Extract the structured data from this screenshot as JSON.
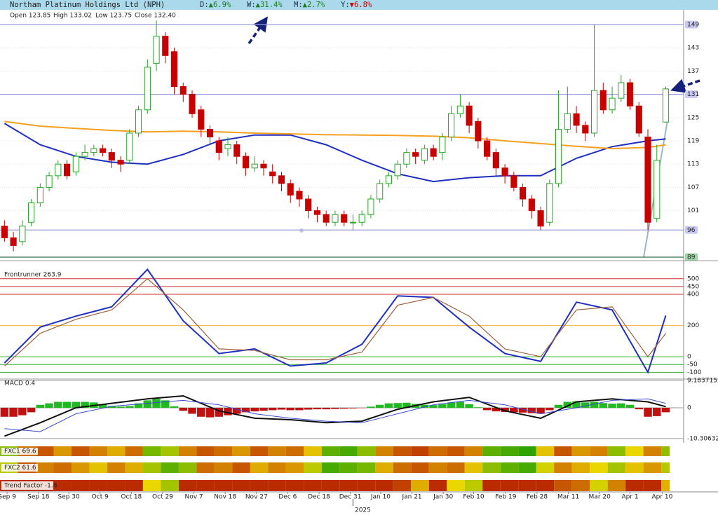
{
  "chart_data": [
    {
      "type": "candlestick",
      "title": "Northam Platinum Holdings Ltd (NPH)",
      "changes": [
        {
          "label": "D:",
          "text": "▲6.9%",
          "color": "#1e7b1e"
        },
        {
          "label": "W:",
          "text": "▲31.4%",
          "color": "#1e7b1e"
        },
        {
          "label": "M:",
          "text": "▲2.7%",
          "color": "#1e7b1e"
        },
        {
          "label": "Y:",
          "text": "▼6.8%",
          "color": "#cc0000"
        }
      ],
      "ohlc_text": [
        "Open 123.85",
        "High 133.02",
        "Low 123.75",
        "Close 132.40"
      ],
      "open": [
        97,
        94,
        93,
        98,
        103,
        107,
        110,
        113,
        111,
        115,
        116,
        117,
        116,
        114,
        114,
        121,
        127,
        139,
        146,
        142,
        133,
        131,
        127,
        122,
        119,
        117,
        118,
        115,
        112,
        113,
        111,
        110,
        108,
        106,
        104,
        101,
        100,
        98,
        100,
        98,
        98,
        100,
        104,
        108,
        110,
        113,
        116,
        114,
        117,
        116,
        120,
        126,
        128,
        124,
        119,
        116,
        112,
        110,
        107,
        104,
        101,
        98,
        108,
        122,
        126,
        123,
        121,
        132,
        127,
        130,
        134,
        128,
        120,
        99,
        123.85
      ],
      "high": [
        98.5,
        95.5,
        98.5,
        104,
        108,
        111,
        114,
        114,
        116,
        118,
        118,
        118,
        117,
        115,
        122,
        128,
        140,
        150,
        147,
        143,
        134,
        132,
        128,
        123,
        120,
        120,
        119,
        116,
        115,
        114,
        113,
        111,
        109,
        107,
        105,
        102,
        101,
        101,
        101,
        100,
        101,
        105,
        109,
        111,
        114,
        117,
        117,
        118,
        118,
        121,
        128,
        131,
        129,
        125,
        120,
        117,
        113,
        111,
        108,
        105,
        102,
        109,
        132,
        133,
        128,
        124,
        149,
        134,
        133,
        136,
        135,
        129,
        122,
        118,
        133.02
      ],
      "low": [
        93,
        90.5,
        92,
        97,
        102,
        106,
        109,
        109,
        110,
        114,
        115,
        115,
        112,
        111,
        113,
        120,
        126,
        137,
        139,
        131,
        129,
        125,
        120,
        118,
        114,
        115,
        113,
        110,
        111,
        110,
        108,
        106,
        103,
        102,
        99,
        98,
        97,
        97,
        97,
        96,
        97,
        99,
        103,
        107,
        109,
        112,
        113,
        113,
        114,
        114,
        119,
        125,
        121,
        117,
        114,
        110,
        108,
        106,
        102,
        99,
        96,
        97,
        107,
        121,
        121,
        119,
        120,
        126,
        126,
        129,
        127,
        120,
        96,
        98,
        123.75
      ],
      "close": [
        94,
        92,
        97,
        103,
        107,
        110,
        113,
        110,
        115,
        116,
        117,
        116,
        114,
        113,
        121,
        127,
        138,
        146,
        141,
        133,
        131,
        126,
        122,
        120,
        116,
        118,
        115,
        112,
        113,
        112,
        110,
        108,
        105,
        104,
        101,
        100,
        98,
        100,
        98,
        98,
        100,
        104,
        108,
        110,
        113,
        116,
        115,
        117,
        115,
        120,
        126,
        128,
        123,
        119,
        115,
        112,
        110,
        107,
        104,
        101,
        97,
        108,
        122,
        126,
        123,
        121,
        132,
        127,
        130,
        134,
        128,
        121,
        98,
        114,
        132.4
      ],
      "up_color": "#22a822",
      "down_color": "#c80000",
      "overlay_x": [
        0,
        4,
        8,
        12,
        16,
        20,
        24,
        28,
        32,
        36,
        40,
        44,
        48,
        52,
        56,
        60,
        64,
        68,
        72,
        74
      ],
      "overlays": [
        {
          "color": "#1f2fc0",
          "values": [
            123.5,
            118,
            115,
            113.5,
            113,
            115.5,
            119,
            120.5,
            120.5,
            118,
            114,
            110.5,
            108.5,
            109.5,
            110,
            110,
            114.5,
            117.5,
            119,
            119.5
          ]
        },
        {
          "color": "#f5a020",
          "values": [
            124,
            122.8,
            122.2,
            121.7,
            121.3,
            121.5,
            121.3,
            121,
            120.8,
            120.6,
            120.5,
            120.4,
            120.2,
            119.8,
            119,
            118.3,
            117.6,
            117,
            117.3,
            118
          ]
        }
      ],
      "levels": [
        {
          "value": 149,
          "color": "#9a9ae0",
          "box": "#c8c8f2"
        },
        {
          "value": 131,
          "color": "#9a9ae0",
          "box": "#c8c8f2"
        },
        {
          "value": 96,
          "color": "#9a9ae0",
          "box": "#c8c8f2"
        },
        {
          "value": 89,
          "color": "#2e6e4e",
          "box": "#9fd4a8"
        }
      ],
      "xlim": [
        -0.5,
        76
      ],
      "ylim": [
        88.1,
        152.8
      ],
      "yticks": [
        143,
        137,
        125,
        119,
        113,
        107,
        101
      ],
      "xticks": [
        {
          "value": 0.3,
          "label": "Sep 9"
        },
        {
          "value": 3.8,
          "label": "Sep 18"
        },
        {
          "value": 7.2,
          "label": "Sep 30"
        },
        {
          "value": 10.7,
          "label": "Oct 9"
        },
        {
          "value": 14.2,
          "label": "Oct 18"
        },
        {
          "value": 17.7,
          "label": "Oct 29"
        },
        {
          "value": 21.2,
          "label": "Nov 7"
        },
        {
          "value": 24.7,
          "label": "Nov 18"
        },
        {
          "value": 28.2,
          "label": "Nov 27"
        },
        {
          "value": 31.7,
          "label": "Dec 6"
        },
        {
          "value": 35.2,
          "label": "Dec 18"
        },
        {
          "value": 38.7,
          "label": "Dec 31"
        },
        {
          "value": 42.1,
          "label": "Jan 10"
        },
        {
          "value": 45.6,
          "label": "Jan 21"
        },
        {
          "value": 49.1,
          "label": "Jan 30"
        },
        {
          "value": 52.5,
          "label": "Feb 10"
        },
        {
          "value": 56.1,
          "label": "Feb 19"
        },
        {
          "value": 59.6,
          "label": "Feb 28"
        },
        {
          "value": 63.1,
          "label": "Mar 11"
        },
        {
          "value": 66.6,
          "label": "Mar 20"
        },
        {
          "value": 70.0,
          "label": "Apr 1"
        },
        {
          "value": 73.6,
          "label": "Apr 10"
        }
      ],
      "year_marker": {
        "value": 39,
        "label": "2025"
      }
    },
    {
      "type": "line",
      "label": "Frontrunner 263.9",
      "x": [
        0,
        4,
        8,
        12,
        16,
        20,
        24,
        28,
        32,
        36,
        40,
        44,
        48,
        52,
        56,
        60,
        64,
        68,
        72,
        74
      ],
      "series": [
        {
          "color": "#1f2fc0",
          "values": [
            -40,
            190,
            260,
            320,
            560,
            230,
            20,
            50,
            -60,
            -40,
            80,
            390,
            380,
            190,
            20,
            -30,
            350,
            300,
            -100,
            263.9
          ]
        },
        {
          "color": "#a0603a",
          "values": [
            -60,
            150,
            240,
            300,
            500,
            300,
            50,
            40,
            -20,
            -20,
            30,
            330,
            380,
            260,
            50,
            0,
            300,
            320,
            0,
            150
          ]
        }
      ],
      "ylim": [
        -139,
        607
      ],
      "yticks": [
        500,
        450,
        400,
        200,
        0,
        -50,
        -100
      ],
      "grid_colors": [
        "#c83030",
        "#c83030",
        "#c83030",
        "#f0b040",
        "#30b030",
        "#30b030",
        "#30b030"
      ]
    },
    {
      "type": "macd",
      "label": "MACD 0.4",
      "histogram": [
        -3,
        -3,
        -2.5,
        -1.5,
        1,
        1.5,
        2,
        2,
        2,
        2,
        1.8,
        1.2,
        0.6,
        0.4,
        0.6,
        1.5,
        2.5,
        3,
        2.5,
        0.5,
        -1,
        -2,
        -3,
        -3.2,
        -3,
        -2.5,
        -2,
        -1.5,
        -1.2,
        -1,
        -0.8,
        -0.6,
        -0.8,
        -0.8,
        -0.6,
        -0.5,
        -0.5,
        -0.4,
        -0.3,
        -0.2,
        -0.1,
        0.4,
        1,
        1.5,
        1.6,
        1.7,
        1.3,
        1,
        0.9,
        1.2,
        1.8,
        2,
        1.2,
        0.2,
        -0.8,
        -1.2,
        -1.4,
        -1.5,
        -1.6,
        -1.8,
        -2,
        -0.8,
        1,
        2,
        2.2,
        1.8,
        2,
        1.6,
        1.4,
        1.5,
        1,
        -0.5,
        -3,
        -2.8,
        -1.5
      ],
      "pos_color": "#22b822",
      "neg_color": "#c01010",
      "x": [
        0,
        4,
        8,
        12,
        16,
        20,
        24,
        28,
        32,
        36,
        40,
        44,
        48,
        52,
        56,
        60,
        64,
        68,
        72,
        74
      ],
      "series": [
        {
          "color": "#111111",
          "values": [
            -9.5,
            -5,
            0,
            1.5,
            3,
            4,
            -1,
            -3.5,
            -4,
            -5,
            -4.5,
            -0.5,
            2,
            3.5,
            -1,
            -3.5,
            2,
            3,
            2,
            0.4
          ]
        },
        {
          "color": "#3a4ad0",
          "values": [
            -7,
            -8,
            -2,
            0.5,
            1.5,
            2.5,
            1,
            -2,
            -3.5,
            -4.5,
            -5,
            -2,
            1,
            2.5,
            1,
            -2,
            0,
            2.5,
            3,
            1.5
          ]
        }
      ],
      "ylim": [
        -11.76,
        9.65
      ],
      "yticks": [
        9.183715,
        0,
        -10.30632
      ]
    },
    {
      "type": "heatmap",
      "label": "FXC1 69.6",
      "vlim": [
        0,
        100
      ],
      "values": [
        70,
        25,
        20,
        35,
        20,
        30,
        40,
        25,
        75,
        65,
        30,
        20,
        25,
        35,
        20,
        30,
        25,
        45,
        80,
        85,
        70,
        30,
        20,
        15,
        25,
        20,
        30,
        80,
        85,
        90,
        45,
        20,
        35,
        30,
        70,
        50,
        30,
        69.6
      ]
    },
    {
      "type": "heatmap",
      "label": "FXC2 61.6",
      "vlim": [
        0,
        100
      ],
      "values": [
        60,
        20,
        30,
        25,
        35,
        45,
        30,
        40,
        65,
        80,
        70,
        25,
        30,
        20,
        40,
        30,
        35,
        60,
        85,
        80,
        75,
        40,
        25,
        20,
        30,
        25,
        45,
        70,
        80,
        85,
        55,
        30,
        40,
        50,
        65,
        45,
        35,
        61.6
      ]
    },
    {
      "type": "heatmap",
      "label": "Trend Factor -1.8",
      "vlim": [
        -10,
        10
      ],
      "values": [
        -8,
        -8,
        -8,
        -8,
        -8,
        -8,
        -8,
        -8,
        0,
        3,
        -8,
        -8,
        -8,
        -8,
        -8,
        -8,
        -8,
        -8,
        -8,
        -8,
        -8,
        -8,
        -7,
        -2,
        -8,
        0,
        2,
        -8,
        -8,
        -8,
        -8,
        -6,
        -5,
        1,
        -4,
        -8,
        -8,
        -1.8
      ]
    }
  ]
}
